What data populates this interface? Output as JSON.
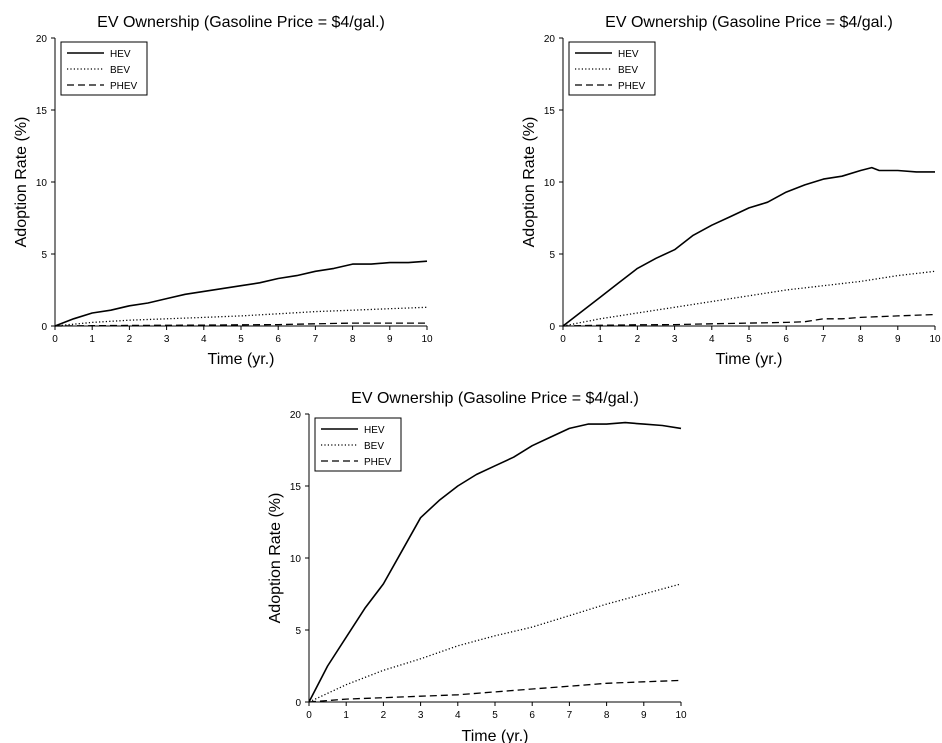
{
  "chart_data": [
    {
      "type": "line",
      "title": "EV Ownership (Gasoline Price = $4/gal.)",
      "xlabel": "Time (yr.)",
      "ylabel": "Adoption Rate (%)",
      "xlim": [
        0,
        10
      ],
      "ylim": [
        0,
        20
      ],
      "xticks": [
        0,
        1,
        2,
        3,
        4,
        5,
        6,
        7,
        8,
        9,
        10
      ],
      "yticks": [
        0,
        5,
        10,
        15,
        20
      ],
      "grid": false,
      "legend_position": "top-left",
      "series": [
        {
          "name": "HEV",
          "style": "solid",
          "x": [
            0,
            0.5,
            1,
            1.5,
            2,
            2.5,
            3,
            3.5,
            4,
            4.5,
            5,
            5.5,
            6,
            6.5,
            7,
            7.5,
            8,
            8.5,
            9,
            9.5,
            10
          ],
          "y": [
            0,
            0.5,
            0.9,
            1.1,
            1.4,
            1.6,
            1.9,
            2.2,
            2.4,
            2.6,
            2.8,
            3.0,
            3.3,
            3.5,
            3.8,
            4.0,
            4.3,
            4.3,
            4.4,
            4.4,
            4.5
          ]
        },
        {
          "name": "BEV",
          "style": "dotted",
          "x": [
            0,
            1,
            2,
            3,
            4,
            5,
            6,
            7,
            8,
            9,
            10
          ],
          "y": [
            0,
            0.25,
            0.4,
            0.5,
            0.6,
            0.7,
            0.85,
            1.0,
            1.1,
            1.2,
            1.3
          ]
        },
        {
          "name": "PHEV",
          "style": "dashed",
          "x": [
            0,
            1,
            2,
            3,
            4,
            5,
            6,
            7,
            8,
            9,
            10
          ],
          "y": [
            0,
            0.02,
            0.04,
            0.05,
            0.06,
            0.08,
            0.1,
            0.15,
            0.2,
            0.2,
            0.2
          ]
        }
      ]
    },
    {
      "type": "line",
      "title": "EV Ownership (Gasoline Price = $4/gal.)",
      "xlabel": "Time (yr.)",
      "ylabel": "Adoption Rate (%)",
      "xlim": [
        0,
        10
      ],
      "ylim": [
        0,
        20
      ],
      "xticks": [
        0,
        1,
        2,
        3,
        4,
        5,
        6,
        7,
        8,
        9,
        10
      ],
      "yticks": [
        0,
        5,
        10,
        15,
        20
      ],
      "grid": false,
      "legend_position": "top-left",
      "series": [
        {
          "name": "HEV",
          "style": "solid",
          "x": [
            0,
            0.5,
            1,
            1.5,
            2,
            2.5,
            3,
            3.5,
            4,
            4.5,
            5,
            5.5,
            6,
            6.5,
            7,
            7.5,
            8,
            8.3,
            8.5,
            9,
            9.5,
            10
          ],
          "y": [
            0,
            1.0,
            2.0,
            3.0,
            4.0,
            4.7,
            5.3,
            6.3,
            7.0,
            7.6,
            8.2,
            8.6,
            9.3,
            9.8,
            10.2,
            10.4,
            10.8,
            11.0,
            10.8,
            10.8,
            10.7,
            10.7
          ]
        },
        {
          "name": "BEV",
          "style": "dotted",
          "x": [
            0,
            1,
            2,
            3,
            4,
            5,
            6,
            7,
            8,
            9,
            10
          ],
          "y": [
            0,
            0.5,
            0.9,
            1.3,
            1.7,
            2.1,
            2.5,
            2.8,
            3.1,
            3.5,
            3.8
          ]
        },
        {
          "name": "PHEV",
          "style": "dashed",
          "x": [
            0,
            1,
            2,
            3,
            4,
            5,
            6,
            6.5,
            7,
            7.5,
            8,
            9,
            10
          ],
          "y": [
            0,
            0.05,
            0.08,
            0.1,
            0.15,
            0.2,
            0.25,
            0.3,
            0.5,
            0.5,
            0.6,
            0.7,
            0.8
          ]
        }
      ]
    },
    {
      "type": "line",
      "title": "EV Ownership (Gasoline Price = $4/gal.)",
      "xlabel": "Time (yr.)",
      "ylabel": "Adoption Rate (%)",
      "xlim": [
        0,
        10
      ],
      "ylim": [
        0,
        20
      ],
      "xticks": [
        0,
        1,
        2,
        3,
        4,
        5,
        6,
        7,
        8,
        9,
        10
      ],
      "yticks": [
        0,
        5,
        10,
        15,
        20
      ],
      "grid": false,
      "legend_position": "top-left",
      "series": [
        {
          "name": "HEV",
          "style": "solid",
          "x": [
            0,
            0.5,
            1,
            1.5,
            2,
            2.5,
            3,
            3.5,
            4,
            4.5,
            5,
            5.5,
            6,
            6.5,
            7,
            7.5,
            8,
            8.5,
            9,
            9.5,
            10
          ],
          "y": [
            0,
            2.5,
            4.5,
            6.5,
            8.2,
            10.5,
            12.8,
            14.0,
            15.0,
            15.8,
            16.4,
            17.0,
            17.8,
            18.4,
            19.0,
            19.3,
            19.3,
            19.4,
            19.3,
            19.2,
            19.0
          ]
        },
        {
          "name": "BEV",
          "style": "dotted",
          "x": [
            0,
            1,
            2,
            3,
            4,
            5,
            6,
            7,
            8,
            9,
            10
          ],
          "y": [
            0,
            1.2,
            2.2,
            3.0,
            3.9,
            4.6,
            5.2,
            6.0,
            6.8,
            7.5,
            8.2
          ]
        },
        {
          "name": "PHEV",
          "style": "dashed",
          "x": [
            0,
            1,
            2,
            3,
            4,
            5,
            6,
            7,
            8,
            9,
            10
          ],
          "y": [
            0,
            0.2,
            0.3,
            0.4,
            0.5,
            0.7,
            0.9,
            1.1,
            1.3,
            1.4,
            1.5
          ]
        }
      ]
    }
  ]
}
